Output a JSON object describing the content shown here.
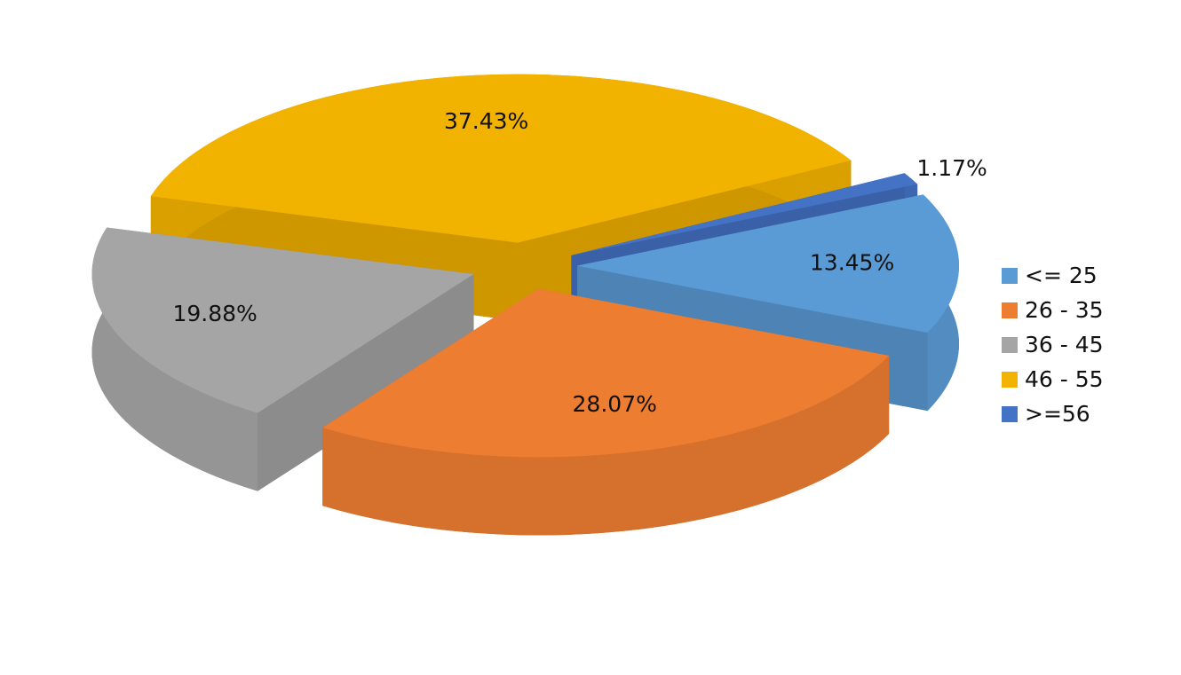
{
  "chart_data": {
    "type": "pie3d",
    "categories": [
      "<= 25",
      "26 - 35",
      "36 - 45",
      "46 - 55",
      ">=56"
    ],
    "values": [
      13.45,
      28.07,
      19.88,
      37.43,
      1.17
    ],
    "value_labels": [
      "13.45%",
      "28.07%",
      "19.88%",
      "37.43%",
      "1.17%"
    ],
    "colors": [
      "#5b9bd5",
      "#ed7d31",
      "#a5a5a5",
      "#f2b200",
      "#4472c4"
    ],
    "legend": "right"
  }
}
